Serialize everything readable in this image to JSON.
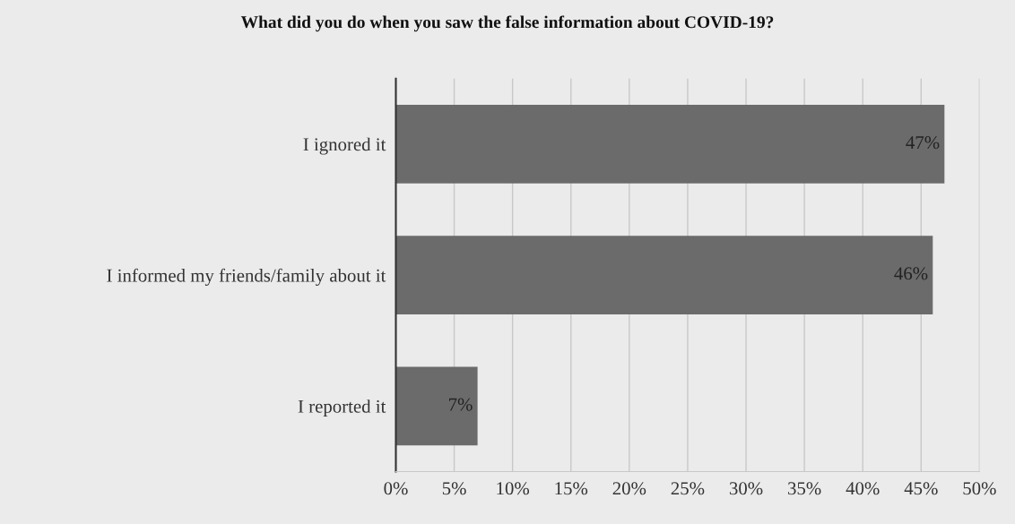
{
  "chart_data": {
    "type": "bar",
    "orientation": "horizontal",
    "title": "What did you do when you saw the false information about COVID-19?",
    "categories": [
      "I ignored it",
      "I informed my friends/family about it",
      "I reported it"
    ],
    "values": [
      47,
      46,
      7
    ],
    "color": "#6b6b6b",
    "value_labels": [
      "47%",
      "46%",
      "7%"
    ],
    "xlim": [
      0,
      50
    ],
    "xticks": [
      {
        "value": 0,
        "label": "0%"
      },
      {
        "value": 5,
        "label": "5%"
      },
      {
        "value": 10,
        "label": "10%"
      },
      {
        "value": 15,
        "label": "15%"
      },
      {
        "value": 20,
        "label": "20%"
      },
      {
        "value": 25,
        "label": "25%"
      },
      {
        "value": 30,
        "label": "30%"
      },
      {
        "value": 35,
        "label": "35%"
      },
      {
        "value": 40,
        "label": "40%"
      },
      {
        "value": 45,
        "label": "45%"
      },
      {
        "value": 50,
        "label": "50%"
      }
    ],
    "grid": "x",
    "legend": false
  }
}
